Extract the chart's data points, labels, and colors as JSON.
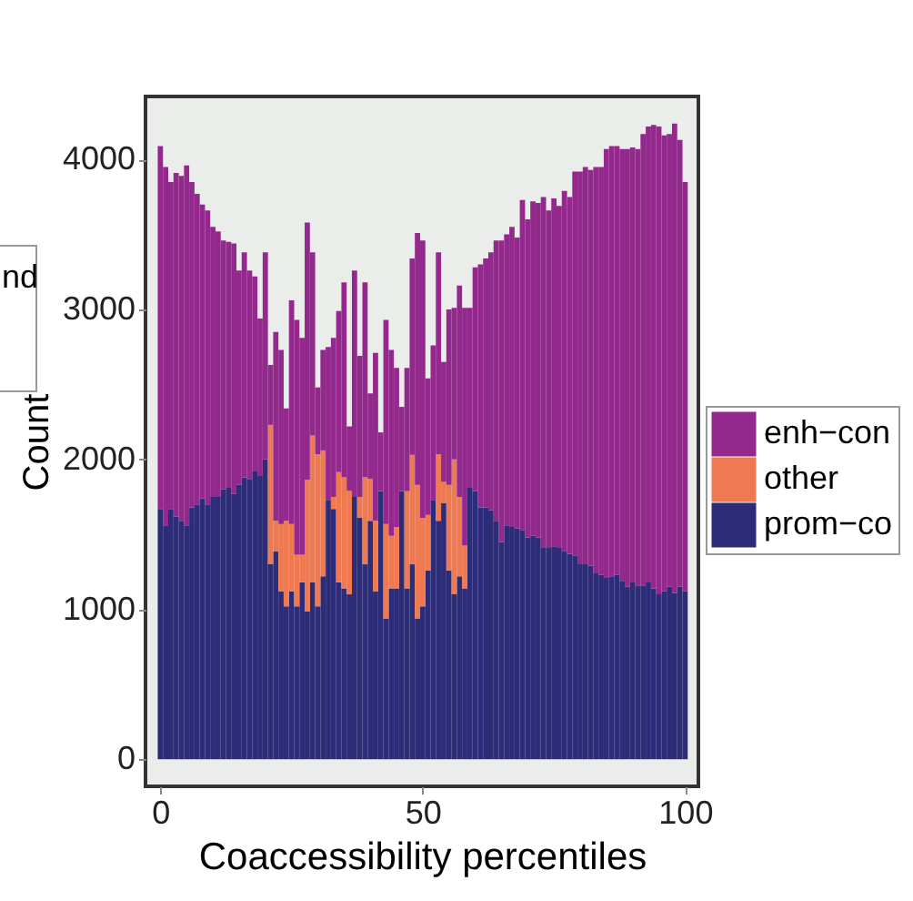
{
  "chart_data": {
    "type": "bar",
    "stacked": true,
    "xlabel": "Coaccessibility percentiles",
    "ylabel": "Count",
    "annotations": [
      "nd"
    ],
    "x": [
      0,
      1,
      2,
      3,
      4,
      5,
      6,
      7,
      8,
      9,
      10,
      11,
      12,
      13,
      14,
      15,
      16,
      17,
      18,
      19,
      20,
      21,
      22,
      23,
      24,
      25,
      26,
      27,
      28,
      29,
      30,
      31,
      32,
      33,
      34,
      35,
      36,
      37,
      38,
      39,
      40,
      41,
      42,
      43,
      44,
      45,
      46,
      47,
      48,
      49,
      50,
      51,
      52,
      53,
      54,
      55,
      56,
      57,
      58,
      59,
      60,
      61,
      62,
      63,
      64,
      65,
      66,
      67,
      68,
      69,
      70,
      71,
      72,
      73,
      74,
      75,
      76,
      77,
      78,
      79,
      80,
      81,
      82,
      83,
      84,
      85,
      86,
      87,
      88,
      89,
      90,
      91,
      92,
      93,
      94,
      95,
      96,
      97,
      98,
      99,
      100
    ],
    "series": [
      {
        "name": "prom−co",
        "color": "#2c2c78",
        "values": [
          1670,
          1560,
          1670,
          1620,
          1590,
          1560,
          1680,
          1700,
          1740,
          1700,
          1750,
          1750,
          1800,
          1810,
          1770,
          1830,
          1880,
          1870,
          1920,
          1890,
          2000,
          1300,
          1385,
          1120,
          1020,
          1120,
          1020,
          1180,
          985,
          1180,
          1020,
          1220,
          1730,
          1670,
          1180,
          1140,
          1100,
          1750,
          1610,
          1300,
          1590,
          1120,
          1790,
          940,
          1140,
          1140,
          1790,
          1140,
          1300,
          940,
          1020,
          1260,
          1730,
          1590,
          1710,
          1260,
          1100,
          1220,
          1140,
          1810,
          1790,
          1680,
          1680,
          1660,
          1590,
          1450,
          1560,
          1550,
          1540,
          1530,
          1480,
          1490,
          1480,
          1410,
          1410,
          1420,
          1410,
          1390,
          1370,
          1360,
          1300,
          1300,
          1290,
          1240,
          1230,
          1210,
          1220,
          1230,
          1190,
          1150,
          1180,
          1160,
          1160,
          1180,
          1140,
          1100,
          1120,
          1150,
          1110,
          1150,
          1120
        ]
      },
      {
        "name": "other",
        "color": "#ef7a52",
        "values": [
          null,
          null,
          null,
          null,
          null,
          null,
          null,
          null,
          null,
          null,
          null,
          null,
          null,
          null,
          null,
          null,
          null,
          null,
          null,
          null,
          null,
          930,
          205,
          450,
          570,
          450,
          345,
          185,
          880,
          980,
          1015,
          840,
          null,
          80,
          735,
          740,
          690,
          null,
          140,
          580,
          280,
          470,
          null,
          630,
          350,
          410,
          null,
          650,
          730,
          890,
          590,
          370,
          null,
          445,
          140,
          570,
          900,
          530,
          285,
          null,
          null,
          null,
          null,
          null,
          null,
          null,
          null,
          null,
          null,
          null,
          null,
          null,
          null,
          null,
          null,
          null,
          null,
          null,
          null,
          null,
          null,
          null,
          null,
          null,
          null,
          null,
          null,
          null,
          null,
          null,
          null,
          null,
          null,
          null,
          null,
          null,
          null,
          null,
          null,
          null,
          null
        ]
      },
      {
        "name": "enh−con",
        "color": "#93298d",
        "values": [
          2420,
          2390,
          2180,
          2290,
          2300,
          2400,
          2170,
          2070,
          1960,
          1960,
          1800,
          1770,
          1660,
          1640,
          1670,
          1430,
          1500,
          1390,
          1300,
          1050,
          1380,
          400,
          1260,
          1160,
          750,
          1490,
          1565,
          1445,
          1715,
          1220,
          445,
          670,
          1020,
          1060,
          1075,
          1300,
          430,
          1510,
          940,
          1300,
          570,
          1120,
          390,
          1360,
          1240,
          1060,
          560,
          820,
          1310,
          1680,
          1850,
          910,
          1030,
          1345,
          800,
          1170,
          1010,
          1410,
          1585,
          1200,
          1490,
          1620,
          1660,
          1720,
          1870,
          2010,
          1940,
          2000,
          1940,
          2200,
          2120,
          2230,
          2230,
          2340,
          2250,
          2320,
          2280,
          2400,
          2380,
          2560,
          2620,
          2650,
          2640,
          2710,
          2720,
          2860,
          2870,
          2860,
          2880,
          2920,
          2900,
          2910,
          3010,
          3040,
          3090,
          3120,
          3040,
          3020,
          3130,
          2980,
          2730
        ]
      }
    ],
    "xlim": [
      -1.1,
      100.8
    ],
    "xticks": [
      0,
      50,
      100
    ],
    "ylim": [
      -180,
      4420
    ],
    "yticks": [
      0,
      1000,
      2000,
      3000,
      4000
    ],
    "grid": false,
    "legend": "right"
  }
}
